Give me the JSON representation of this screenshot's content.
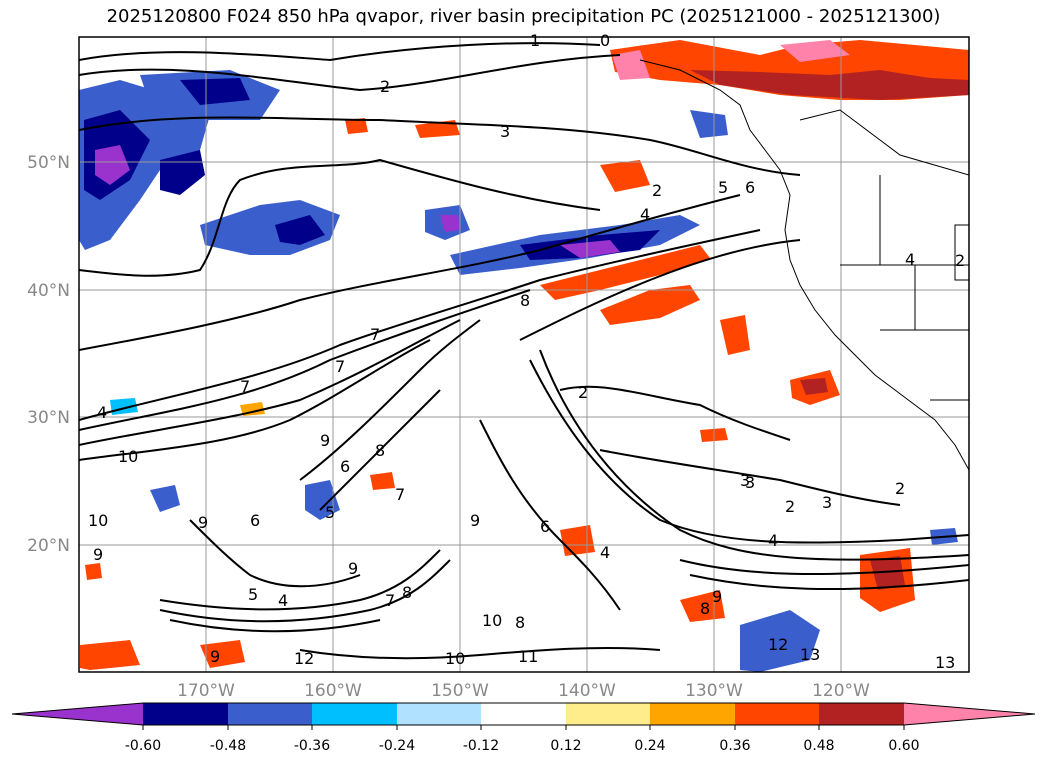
{
  "title": "2025120800 F024 850 hPa qvapor, river basin precipitation PC (2025121000 - 2025121300)",
  "lat_labels": [
    "50°N",
    "40°N",
    "30°N",
    "20°N"
  ],
  "lon_labels": [
    "170°W",
    "160°W",
    "150°W",
    "140°W",
    "130°W",
    "120°W"
  ],
  "colorbar": {
    "ticks": [
      "-0.60",
      "-0.48",
      "-0.36",
      "-0.24",
      "-0.12",
      "0.12",
      "0.24",
      "0.36",
      "0.48",
      "0.60"
    ],
    "colors": [
      "#9a32cd",
      "#00008b",
      "#3a5fcd",
      "#00bfff",
      "#b0e2ff",
      "#ffffff",
      "#ffec8b",
      "#ffa500",
      "#ff4500",
      "#b22222",
      "#ff82ab"
    ]
  },
  "contour_labels": [
    "1",
    "0",
    "2",
    "3",
    "2",
    "4",
    "5",
    "6",
    "8",
    "4",
    "7",
    "7",
    "7",
    "4",
    "10",
    "9",
    "6",
    "8",
    "7",
    "9",
    "9",
    "10",
    "9",
    "5",
    "4",
    "5",
    "6",
    "9",
    "7",
    "8",
    "2",
    "3",
    "3",
    "2",
    "4",
    "2",
    "10",
    "8",
    "11",
    "10",
    "12",
    "9",
    "8",
    "13",
    "12",
    "13",
    "9",
    "6",
    "2",
    "4",
    "3"
  ],
  "icons": {
    "colorbar_min_arrow": "triangle-left",
    "colorbar_max_arrow": "triangle-right"
  }
}
